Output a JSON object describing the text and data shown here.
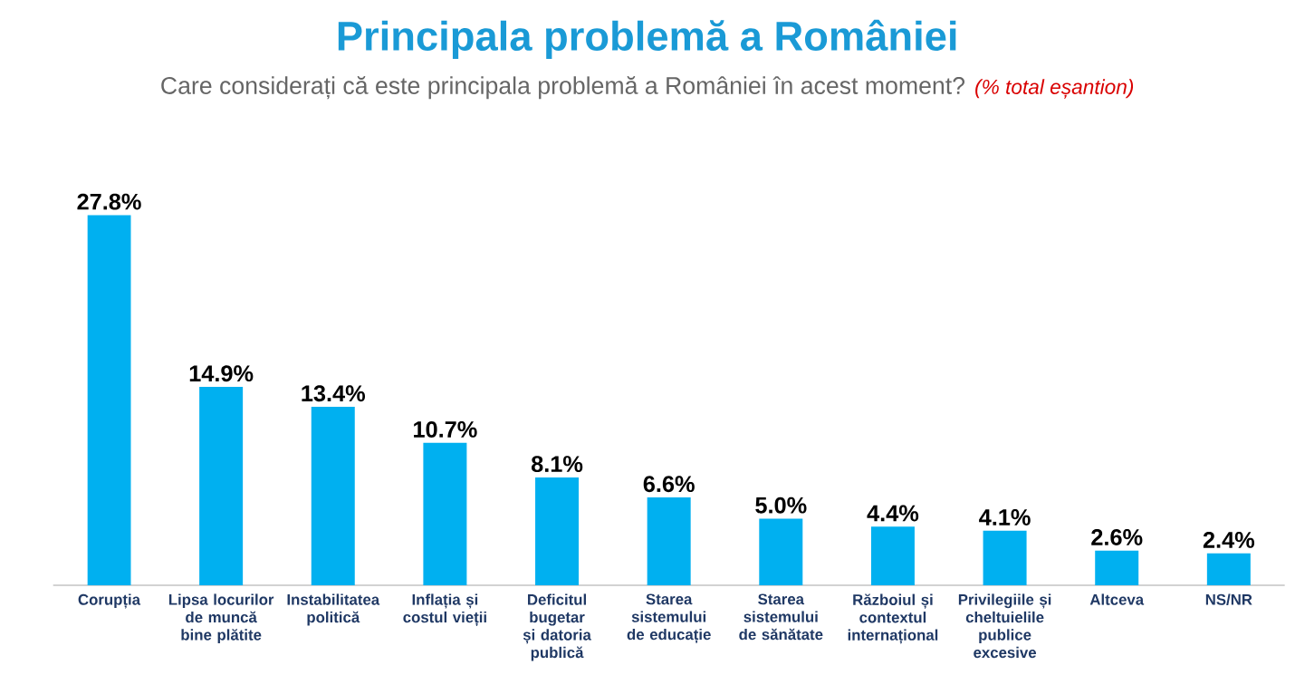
{
  "chart_data": {
    "type": "bar",
    "title": "Principala problemă a României",
    "subtitle": "Care considerați că este principala problemă a României în acest moment?",
    "annotations": [
      "(% total eșantion)"
    ],
    "categories": [
      "Corupția",
      "Lipsa locurilor de muncă bine plătite",
      "Instabilitatea politică",
      "Inflația și costul vieții",
      "Deficitul bugetar și datoria publică",
      "Starea sistemului de educație",
      "Starea sistemului de sănătate",
      "Războiul și contextul internațional",
      "Privilegiile și cheltuielile publice excesive",
      "Altceva",
      "NS/NR"
    ],
    "values": [
      27.8,
      14.9,
      13.4,
      10.7,
      8.1,
      6.6,
      5.0,
      4.4,
      4.1,
      2.6,
      2.4
    ],
    "value_labels": [
      "27.8%",
      "14.9%",
      "13.4%",
      "10.7%",
      "8.1%",
      "6.6%",
      "5.0%",
      "4.4%",
      "4.1%",
      "2.6%",
      "2.4%"
    ],
    "color": "#00b0f0"
  }
}
